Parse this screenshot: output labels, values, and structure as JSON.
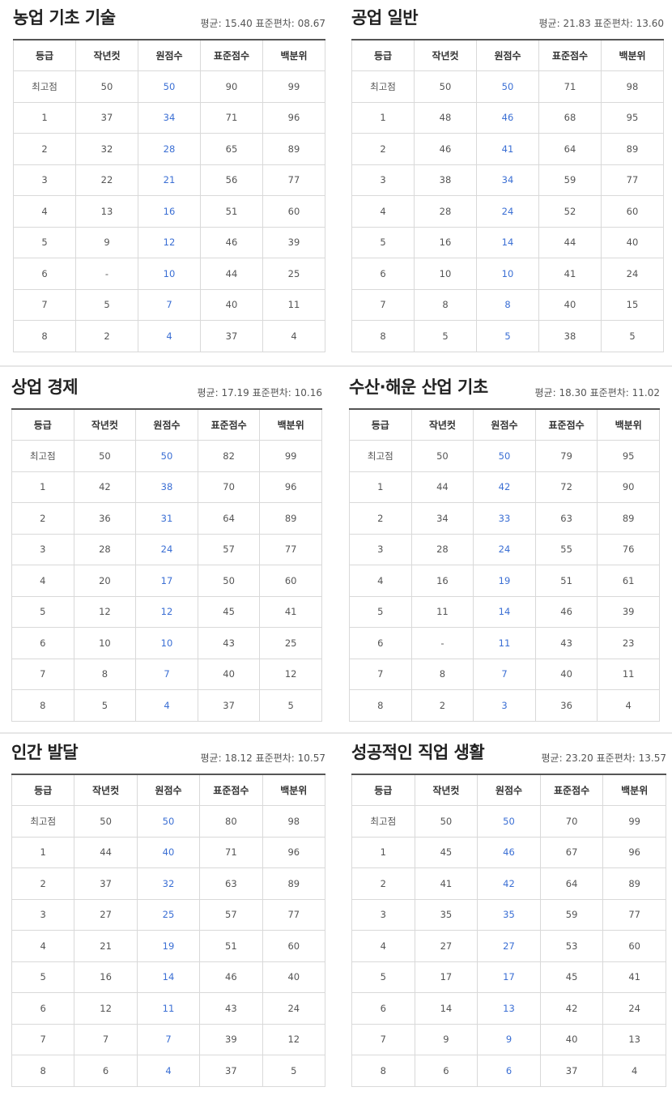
{
  "columns": [
    "등급",
    "작년컷",
    "원점수",
    "표준점수",
    "백분위"
  ],
  "panels": [
    {
      "title": "농업 기초 기술",
      "stats": "평균: 15.40 표준편차: 08.67",
      "rows": [
        [
          "최고점",
          "50",
          "50",
          "90",
          "99"
        ],
        [
          "1",
          "37",
          "34",
          "71",
          "96"
        ],
        [
          "2",
          "32",
          "28",
          "65",
          "89"
        ],
        [
          "3",
          "22",
          "21",
          "56",
          "77"
        ],
        [
          "4",
          "13",
          "16",
          "51",
          "60"
        ],
        [
          "5",
          "9",
          "12",
          "46",
          "39"
        ],
        [
          "6",
          "-",
          "10",
          "44",
          "25"
        ],
        [
          "7",
          "5",
          "7",
          "40",
          "11"
        ],
        [
          "8",
          "2",
          "4",
          "37",
          "4"
        ]
      ]
    },
    {
      "title": "공업 일반",
      "stats": "평균: 21.83 표준편차: 13.60",
      "rows": [
        [
          "최고점",
          "50",
          "50",
          "71",
          "98"
        ],
        [
          "1",
          "48",
          "46",
          "68",
          "95"
        ],
        [
          "2",
          "46",
          "41",
          "64",
          "89"
        ],
        [
          "3",
          "38",
          "34",
          "59",
          "77"
        ],
        [
          "4",
          "28",
          "24",
          "52",
          "60"
        ],
        [
          "5",
          "16",
          "14",
          "44",
          "40"
        ],
        [
          "6",
          "10",
          "10",
          "41",
          "24"
        ],
        [
          "7",
          "8",
          "8",
          "40",
          "15"
        ],
        [
          "8",
          "5",
          "5",
          "38",
          "5"
        ]
      ]
    },
    {
      "title": "상업 경제",
      "stats": "평균: 17.19 표준편차: 10.16",
      "rows": [
        [
          "최고점",
          "50",
          "50",
          "82",
          "99"
        ],
        [
          "1",
          "42",
          "38",
          "70",
          "96"
        ],
        [
          "2",
          "36",
          "31",
          "64",
          "89"
        ],
        [
          "3",
          "28",
          "24",
          "57",
          "77"
        ],
        [
          "4",
          "20",
          "17",
          "50",
          "60"
        ],
        [
          "5",
          "12",
          "12",
          "45",
          "41"
        ],
        [
          "6",
          "10",
          "10",
          "43",
          "25"
        ],
        [
          "7",
          "8",
          "7",
          "40",
          "12"
        ],
        [
          "8",
          "5",
          "4",
          "37",
          "5"
        ]
      ]
    },
    {
      "title": "수산·해운 산업 기초",
      "stats": "평균: 18.30 표준편차: 11.02",
      "rows": [
        [
          "최고점",
          "50",
          "50",
          "79",
          "95"
        ],
        [
          "1",
          "44",
          "42",
          "72",
          "90"
        ],
        [
          "2",
          "34",
          "33",
          "63",
          "89"
        ],
        [
          "3",
          "28",
          "24",
          "55",
          "76"
        ],
        [
          "4",
          "16",
          "19",
          "51",
          "61"
        ],
        [
          "5",
          "11",
          "14",
          "46",
          "39"
        ],
        [
          "6",
          "-",
          "11",
          "43",
          "23"
        ],
        [
          "7",
          "8",
          "7",
          "40",
          "11"
        ],
        [
          "8",
          "2",
          "3",
          "36",
          "4"
        ]
      ]
    },
    {
      "title": "인간 발달",
      "stats": "평균: 18.12 표준편차: 10.57",
      "rows": [
        [
          "최고점",
          "50",
          "50",
          "80",
          "98"
        ],
        [
          "1",
          "44",
          "40",
          "71",
          "96"
        ],
        [
          "2",
          "37",
          "32",
          "63",
          "89"
        ],
        [
          "3",
          "27",
          "25",
          "57",
          "77"
        ],
        [
          "4",
          "21",
          "19",
          "51",
          "60"
        ],
        [
          "5",
          "16",
          "14",
          "46",
          "40"
        ],
        [
          "6",
          "12",
          "11",
          "43",
          "24"
        ],
        [
          "7",
          "7",
          "7",
          "39",
          "12"
        ],
        [
          "8",
          "6",
          "4",
          "37",
          "5"
        ]
      ]
    },
    {
      "title": "성공적인 직업 생활",
      "stats": "평균: 23.20 표준편차: 13.57",
      "rows": [
        [
          "최고점",
          "50",
          "50",
          "70",
          "99"
        ],
        [
          "1",
          "45",
          "46",
          "67",
          "96"
        ],
        [
          "2",
          "41",
          "42",
          "64",
          "89"
        ],
        [
          "3",
          "35",
          "35",
          "59",
          "77"
        ],
        [
          "4",
          "27",
          "27",
          "53",
          "60"
        ],
        [
          "5",
          "17",
          "17",
          "45",
          "41"
        ],
        [
          "6",
          "14",
          "13",
          "42",
          "24"
        ],
        [
          "7",
          "9",
          "9",
          "40",
          "13"
        ],
        [
          "8",
          "6",
          "6",
          "37",
          "4"
        ]
      ]
    }
  ]
}
